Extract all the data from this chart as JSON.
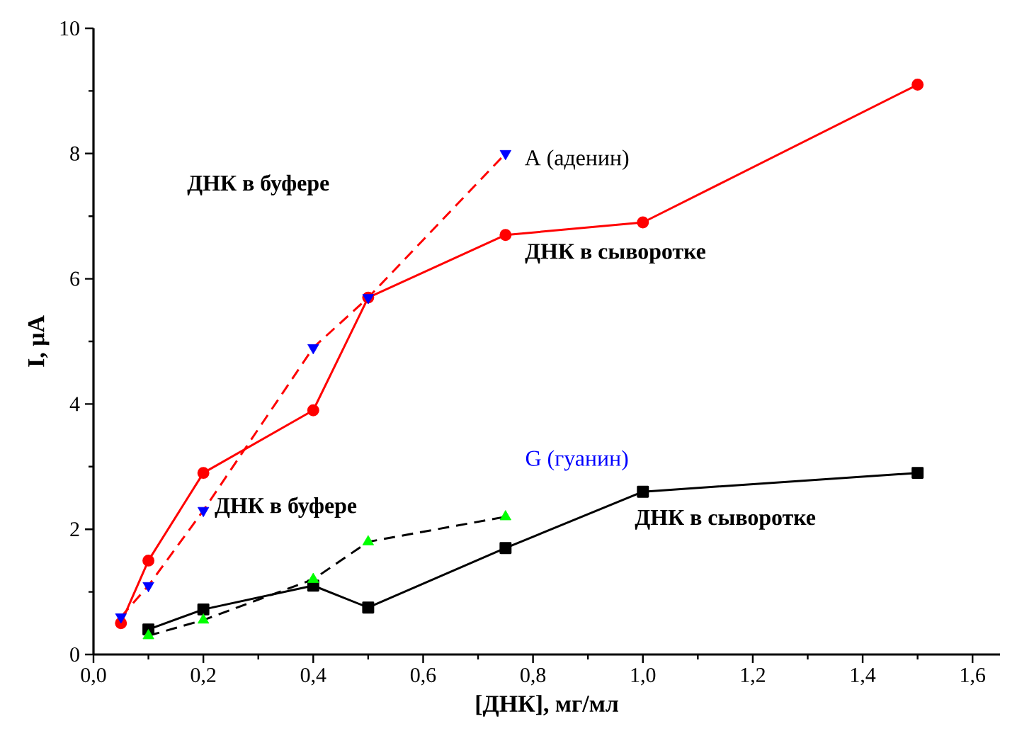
{
  "chart_data": {
    "type": "line",
    "xlabel": "[ДНК], мг/мл",
    "ylabel": "I, μA",
    "xlim": [
      0,
      1.65
    ],
    "ylim": [
      0,
      10
    ],
    "xticks": [
      {
        "value": 0,
        "label": "0,0"
      },
      {
        "value": 0.2,
        "label": "0,2"
      },
      {
        "value": 0.4,
        "label": "0,4"
      },
      {
        "value": 0.6,
        "label": "0,6"
      },
      {
        "value": 0.8,
        "label": "0,8"
      },
      {
        "value": 1.0,
        "label": "1,0"
      },
      {
        "value": 1.2,
        "label": "1,2"
      },
      {
        "value": 1.4,
        "label": "1,4"
      },
      {
        "value": 1.6,
        "label": "1,6"
      }
    ],
    "yticks": [
      0,
      2,
      4,
      6,
      8,
      10
    ],
    "series": [
      {
        "color": "#ff0000",
        "line_style": "solid",
        "marker": "circle",
        "x": [
          0.05,
          0.1,
          0.2,
          0.4,
          0.5,
          0.75,
          1.0,
          1.5
        ],
        "values": [
          0.5,
          1.5,
          2.9,
          3.9,
          5.7,
          6.7,
          6.9,
          9.1
        ]
      },
      {
        "color": "#ff0000",
        "line_style": "dashed",
        "marker": "none",
        "x": [
          0.05,
          0.1,
          0.2,
          0.4,
          0.5,
          0.75
        ],
        "values": [
          0.6,
          1.1,
          2.3,
          4.9,
          5.7,
          8.0
        ]
      },
      {
        "type": "scatter",
        "color": "#0000ff",
        "marker": "triangle down",
        "x": [
          0.05,
          0.1,
          0.2,
          0.4,
          0.5,
          0.75
        ],
        "values": [
          0.6,
          1.1,
          2.3,
          4.9,
          5.7,
          8.0
        ]
      },
      {
        "color": "#000000",
        "line_style": "solid",
        "marker": "square",
        "x": [
          0.1,
          0.2,
          0.4,
          0.5,
          0.75,
          1.0,
          1.5
        ],
        "values": [
          0.4,
          0.72,
          1.1,
          0.75,
          1.7,
          2.6,
          2.9
        ]
      },
      {
        "color": "#000000",
        "line_style": "dashed",
        "marker": "none",
        "x": [
          0.1,
          0.2,
          0.4,
          0.5,
          0.75
        ],
        "values": [
          0.3,
          0.55,
          1.2,
          1.8,
          2.2
        ]
      },
      {
        "type": "scatter",
        "color": "#00ff00",
        "marker": "triangle",
        "x": [
          0.1,
          0.2,
          0.4,
          0.5,
          0.75
        ],
        "values": [
          0.3,
          0.55,
          1.2,
          1.8,
          2.2
        ]
      }
    ],
    "annotations": [
      "**ДНК в буфере**",
      "A (аденин)",
      "**ДНК в сыворотке**",
      "G (гуанин)",
      "**ДНК в буфере**",
      "**ДНК в сыворотке**"
    ]
  }
}
